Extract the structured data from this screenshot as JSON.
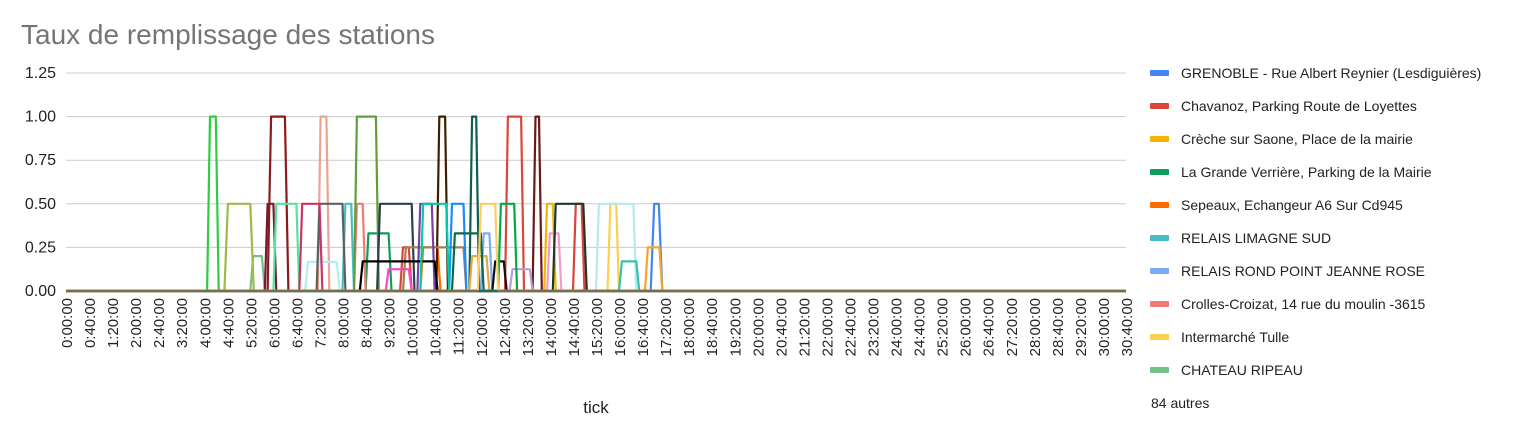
{
  "chart_data": {
    "type": "line",
    "title": "Taux de remplissage des stations",
    "xlabel": "tick",
    "ylabel": "",
    "ylim": [
      0,
      1.25
    ],
    "yticks": [
      "0.00",
      "0.25",
      "0.50",
      "0.75",
      "1.00",
      "1.25"
    ],
    "grid": true,
    "legend_position": "right",
    "x_ticks": [
      "0:00:00",
      "0:40:00",
      "1:20:00",
      "2:00:00",
      "2:40:00",
      "3:20:00",
      "4:00:00",
      "4:40:00",
      "5:20:00",
      "6:00:00",
      "6:40:00",
      "7:20:00",
      "8:00:00",
      "8:40:00",
      "9:20:00",
      "10:00:00",
      "10:40:00",
      "11:20:00",
      "12:00:00",
      "12:40:00",
      "13:20:00",
      "14:00:00",
      "14:40:00",
      "15:20:00",
      "16:00:00",
      "16:40:00",
      "17:20:00",
      "18:00:00",
      "18:40:00",
      "19:20:00",
      "20:00:00",
      "20:40:00",
      "21:20:00",
      "22:00:00",
      "22:40:00",
      "23:20:00",
      "24:00:00",
      "24:40:00",
      "25:20:00",
      "26:00:00",
      "26:40:00",
      "27:20:00",
      "28:00:00",
      "28:40:00",
      "29:20:00",
      "30:00:00",
      "30:40:00"
    ],
    "legend_more": "84 autres",
    "series": [
      {
        "name": "GRENOBLE - Rue Albert Reynier (Lesdiguières)",
        "color": "#4285f4",
        "points": [
          [
            0,
            0
          ],
          [
            1015,
            0
          ],
          [
            1021,
            0.5
          ],
          [
            1029,
            0.5
          ],
          [
            1035,
            0
          ]
        ]
      },
      {
        "name": "Chavanoz, Parking Route de Loyettes",
        "color": "#db4437",
        "points": [
          [
            0,
            0
          ],
          [
            580,
            0
          ],
          [
            585,
            0.25
          ],
          [
            595,
            0.25
          ],
          [
            600,
            0
          ],
          [
            880,
            0
          ],
          [
            885,
            0.5
          ],
          [
            895,
            0.5
          ],
          [
            900,
            0
          ]
        ]
      },
      {
        "name": "Crèche sur Saone, Place de la mairie",
        "color": "#f4b400",
        "points": [
          [
            0,
            0
          ],
          [
            830,
            0
          ],
          [
            835,
            0.5
          ],
          [
            845,
            0.5
          ],
          [
            850,
            0
          ]
        ]
      },
      {
        "name": "La Grande Verrière, Parking de la Mairie",
        "color": "#0f9d58",
        "points": [
          [
            0,
            0
          ],
          [
            520,
            0
          ],
          [
            525,
            0.33
          ],
          [
            560,
            0.33
          ],
          [
            565,
            0
          ]
        ]
      },
      {
        "name": "Sepeaux, Echangeur A6 Sur Cd945",
        "color": "#ff6d01",
        "points": [
          [
            0,
            0
          ],
          [
            615,
            0
          ],
          [
            620,
            0.25
          ],
          [
            645,
            0.25
          ],
          [
            650,
            0
          ]
        ]
      },
      {
        "name": "RELAIS LIMAGNE SUD",
        "color": "#46bdc6",
        "points": [
          [
            0,
            0
          ],
          [
            480,
            0
          ],
          [
            485,
            0.5
          ],
          [
            495,
            0.5
          ],
          [
            500,
            0
          ]
        ]
      },
      {
        "name": "RELAIS  ROND POINT JEANNE ROSE",
        "color": "#7baaf7",
        "points": [
          [
            0,
            0
          ],
          [
            720,
            0
          ],
          [
            725,
            0.33
          ],
          [
            735,
            0.33
          ],
          [
            740,
            0
          ]
        ]
      },
      {
        "name": "Crolles-Croizat, 14 rue du moulin -3615",
        "color": "#f07b72",
        "points": [
          [
            0,
            0
          ],
          [
            500,
            0
          ],
          [
            505,
            0.5
          ],
          [
            515,
            0.5
          ],
          [
            520,
            0
          ]
        ]
      },
      {
        "name": "Intermarché Tulle",
        "color": "#fcd04f",
        "points": [
          [
            0,
            0
          ],
          [
            940,
            0
          ],
          [
            945,
            0.5
          ],
          [
            955,
            0.5
          ],
          [
            960,
            0
          ]
        ]
      },
      {
        "name": "CHATEAU RIPEAU",
        "color": "#71c287",
        "points": [
          [
            0,
            0
          ],
          [
            320,
            0
          ],
          [
            325,
            0.2
          ],
          [
            340,
            0.2
          ],
          [
            345,
            0
          ]
        ]
      },
      {
        "name": "",
        "color": "#2ecc40",
        "points": [
          [
            0,
            0
          ],
          [
            245,
            0
          ],
          [
            250,
            1
          ],
          [
            260,
            1
          ],
          [
            265,
            0
          ]
        ]
      },
      {
        "name": "",
        "color": "#8b1a1a",
        "points": [
          [
            0,
            0
          ],
          [
            350,
            0
          ],
          [
            356,
            1
          ],
          [
            380,
            1
          ],
          [
            386,
            0
          ]
        ]
      },
      {
        "name": "",
        "color": "#e8a590",
        "points": [
          [
            0,
            0
          ],
          [
            437,
            0
          ],
          [
            442,
            1
          ],
          [
            452,
            1
          ],
          [
            457,
            0
          ]
        ]
      },
      {
        "name": "",
        "color": "#5f9e3a",
        "points": [
          [
            0,
            0
          ],
          [
            500,
            0
          ],
          [
            505,
            1
          ],
          [
            538,
            1
          ],
          [
            543,
            0
          ]
        ]
      },
      {
        "name": "",
        "color": "#3e2000",
        "points": [
          [
            0,
            0
          ],
          [
            643,
            0
          ],
          [
            648,
            1
          ],
          [
            658,
            1
          ],
          [
            663,
            0
          ]
        ]
      },
      {
        "name": "",
        "color": "#0e5f51",
        "points": [
          [
            0,
            0
          ],
          [
            700,
            0
          ],
          [
            705,
            1
          ],
          [
            712,
            1
          ],
          [
            717,
            0
          ]
        ]
      },
      {
        "name": "",
        "color": "#d9483b",
        "points": [
          [
            0,
            0
          ],
          [
            762,
            0
          ],
          [
            767,
            1
          ],
          [
            790,
            1
          ],
          [
            795,
            0
          ]
        ]
      },
      {
        "name": "",
        "color": "#6b1a1a",
        "points": [
          [
            0,
            0
          ],
          [
            810,
            0
          ],
          [
            815,
            1
          ],
          [
            821,
            1
          ],
          [
            826,
            0
          ]
        ]
      },
      {
        "name": "",
        "color": "#9cbb48",
        "points": [
          [
            0,
            0
          ],
          [
            275,
            0
          ],
          [
            281,
            0.5
          ],
          [
            320,
            0.5
          ],
          [
            326,
            0
          ]
        ]
      },
      {
        "name": "",
        "color": "#7a1a2e",
        "points": [
          [
            0,
            0
          ],
          [
            345,
            0
          ],
          [
            350,
            0.5
          ],
          [
            360,
            0.5
          ],
          [
            365,
            0
          ]
        ]
      },
      {
        "name": "",
        "color": "#ff44cc",
        "points": [
          [
            0,
            0
          ],
          [
            555,
            0
          ],
          [
            560,
            0.125
          ],
          [
            595,
            0.125
          ],
          [
            600,
            0
          ]
        ]
      },
      {
        "name": "",
        "color": "#56e39f",
        "points": [
          [
            0,
            0
          ],
          [
            360,
            0
          ],
          [
            365,
            0.5
          ],
          [
            400,
            0.5
          ],
          [
            405,
            0
          ]
        ]
      },
      {
        "name": "",
        "color": "#aff0f0",
        "points": [
          [
            0,
            0
          ],
          [
            415,
            0
          ],
          [
            420,
            0.167
          ],
          [
            470,
            0.167
          ],
          [
            475,
            0
          ]
        ]
      },
      {
        "name": "",
        "color": "#b89fdc",
        "points": [
          [
            0,
            0
          ],
          [
            770,
            0
          ],
          [
            775,
            0.125
          ],
          [
            805,
            0.125
          ],
          [
            810,
            0
          ]
        ]
      },
      {
        "name": "",
        "color": "#f19bd0",
        "points": [
          [
            0,
            0
          ],
          [
            835,
            0
          ],
          [
            840,
            0.33
          ],
          [
            855,
            0.33
          ],
          [
            860,
            0
          ]
        ]
      },
      {
        "name": "",
        "color": "#b5e8ef",
        "points": [
          [
            0,
            0
          ],
          [
            920,
            0
          ],
          [
            925,
            0.5
          ],
          [
            985,
            0.5
          ],
          [
            990,
            0
          ]
        ]
      },
      {
        "name": "",
        "color": "#1d3829",
        "points": [
          [
            0,
            0
          ],
          [
            845,
            0
          ],
          [
            850,
            0.5
          ],
          [
            898,
            0.5
          ],
          [
            904,
            0
          ]
        ]
      },
      {
        "name": "",
        "color": "#36c3a8",
        "points": [
          [
            0,
            0
          ],
          [
            960,
            0
          ],
          [
            965,
            0.17
          ],
          [
            990,
            0.17
          ],
          [
            995,
            0
          ]
        ]
      },
      {
        "name": "",
        "color": "#f5a623",
        "points": [
          [
            0,
            0
          ],
          [
            1005,
            0
          ],
          [
            1010,
            0.25
          ],
          [
            1030,
            0.25
          ],
          [
            1035,
            0
          ]
        ]
      },
      {
        "name": "",
        "color": "#111111",
        "points": [
          [
            0,
            0
          ],
          [
            740,
            0
          ],
          [
            745,
            0.17
          ],
          [
            760,
            0.17
          ],
          [
            765,
            0
          ]
        ]
      },
      {
        "name": "",
        "color": "#00aa44",
        "points": [
          [
            0,
            0
          ],
          [
            750,
            0
          ],
          [
            755,
            0.5
          ],
          [
            778,
            0.5
          ],
          [
            783,
            0
          ]
        ]
      },
      {
        "name": "",
        "color": "#2c3e50",
        "points": [
          [
            0,
            0
          ],
          [
            540,
            0
          ],
          [
            545,
            0.5
          ],
          [
            600,
            0.5
          ],
          [
            605,
            0
          ]
        ]
      },
      {
        "name": "",
        "color": "#a67c52",
        "points": [
          [
            0,
            0
          ],
          [
            585,
            0
          ],
          [
            590,
            0.25
          ],
          [
            690,
            0.25
          ],
          [
            695,
            0
          ]
        ]
      },
      {
        "name": "",
        "color": "#7b3fa0",
        "points": [
          [
            0,
            0
          ],
          [
            610,
            0
          ],
          [
            615,
            0.5
          ],
          [
            635,
            0.5
          ],
          [
            640,
            0
          ]
        ]
      },
      {
        "name": "",
        "color": "#e8a73c",
        "points": [
          [
            0,
            0
          ],
          [
            700,
            0
          ],
          [
            705,
            0.2
          ],
          [
            730,
            0.2
          ],
          [
            735,
            0
          ]
        ]
      },
      {
        "name": "",
        "color": "#000000",
        "points": [
          [
            0,
            0
          ],
          [
            510,
            0
          ],
          [
            515,
            0.17
          ],
          [
            640,
            0.17
          ],
          [
            645,
            0
          ]
        ]
      },
      {
        "name": "",
        "color": "#1a8cff",
        "points": [
          [
            0,
            0
          ],
          [
            665,
            0
          ],
          [
            670,
            0.5
          ],
          [
            690,
            0.5
          ],
          [
            695,
            0
          ]
        ]
      },
      {
        "name": "",
        "color": "#0a6b47",
        "points": [
          [
            0,
            0
          ],
          [
            670,
            0
          ],
          [
            675,
            0.33
          ],
          [
            720,
            0.33
          ],
          [
            725,
            0
          ]
        ]
      },
      {
        "name": "",
        "color": "#5e5e5e",
        "points": [
          [
            0,
            0
          ],
          [
            435,
            0
          ],
          [
            440,
            0.5
          ],
          [
            480,
            0.5
          ],
          [
            485,
            0
          ]
        ]
      },
      {
        "name": "",
        "color": "#cc3366",
        "points": [
          [
            0,
            0
          ],
          [
            405,
            0
          ],
          [
            410,
            0.5
          ],
          [
            440,
            0.5
          ],
          [
            445,
            0
          ]
        ]
      },
      {
        "name": "",
        "color": "#00ccaa",
        "points": [
          [
            0,
            0
          ],
          [
            615,
            0
          ],
          [
            620,
            0.5
          ],
          [
            660,
            0.5
          ],
          [
            665,
            0
          ]
        ]
      },
      {
        "name": "",
        "color": "#ffcc66",
        "points": [
          [
            0,
            0
          ],
          [
            715,
            0
          ],
          [
            720,
            0.5
          ],
          [
            745,
            0.5
          ],
          [
            750,
            0
          ]
        ]
      }
    ]
  }
}
